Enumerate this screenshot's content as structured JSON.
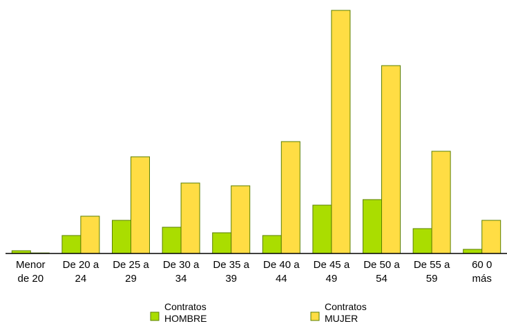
{
  "chart_data": {
    "type": "bar",
    "categories": [
      [
        "Menor",
        "de 20"
      ],
      [
        "De 20 a",
        "24"
      ],
      [
        "De 25 a",
        "29"
      ],
      [
        "De 30 a",
        "34"
      ],
      [
        "De 35 a",
        "39"
      ],
      [
        "De 40 a",
        "44"
      ],
      [
        "De 45 a",
        "49"
      ],
      [
        "De 50 a",
        "54"
      ],
      [
        "De 55 a",
        "59"
      ],
      [
        "60 0",
        "más"
      ]
    ],
    "series": [
      {
        "name": [
          "Contratos",
          "HOMBRE"
        ],
        "color": "#aadd00",
        "values": [
          1,
          6.5,
          12,
          9.5,
          7.5,
          6.5,
          17.5,
          19.5,
          9,
          1.5
        ]
      },
      {
        "name": [
          "Contratos",
          "MUJER"
        ],
        "color": "#ffdd44",
        "values": [
          0.2,
          13.5,
          35,
          25.5,
          24.5,
          40.5,
          88,
          68,
          37,
          12
        ]
      }
    ],
    "ylim": [
      0,
      88
    ],
    "grid": false,
    "legend_position": "bottom"
  }
}
